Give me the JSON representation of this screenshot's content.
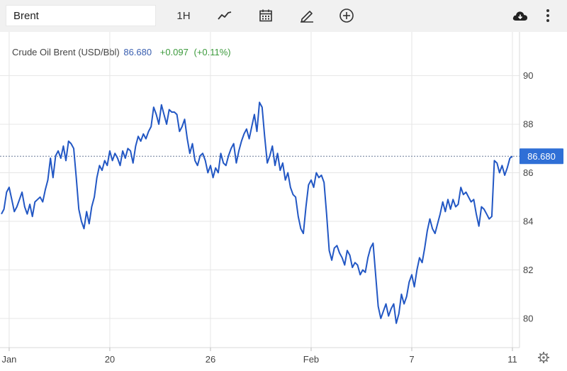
{
  "toolbar": {
    "search_value": "Brent",
    "interval_label": "1H"
  },
  "legend": {
    "instrument": "Crude Oil Brent (USD/Bbl)",
    "last": "86.680",
    "change": "+0.097",
    "change_pct": "(+0.11%)"
  },
  "colors": {
    "line": "#2257c4",
    "positive": "#3c9a3c",
    "price_tag": "#2f6fd6",
    "grid": "#e6e6e6"
  },
  "chart_data": {
    "type": "line",
    "title": "Crude Oil Brent (USD/Bbl)",
    "xlabel": "",
    "ylabel": "",
    "ylim": [
      78.8,
      91.8
    ],
    "y_ticks": [
      80,
      82,
      84,
      86,
      88,
      90
    ],
    "x_ticks": [
      {
        "label": "Jan",
        "i": 3
      },
      {
        "label": "20",
        "i": 42
      },
      {
        "label": "26",
        "i": 81
      },
      {
        "label": "Feb",
        "i": 120
      },
      {
        "label": "7",
        "i": 159
      },
      {
        "label": "11",
        "i": 198
      }
    ],
    "last_price": 86.68,
    "last_price_label": "86.680",
    "series": [
      {
        "values": [
          84.3,
          84.5,
          85.2,
          85.4,
          84.9,
          84.4,
          84.6,
          84.9,
          85.2,
          84.6,
          84.3,
          84.7,
          84.2,
          84.8,
          84.9,
          85.0,
          84.8,
          85.3,
          85.7,
          86.6,
          85.8,
          86.7,
          86.9,
          86.6,
          87.1,
          86.5,
          87.3,
          87.2,
          87.0,
          85.8,
          84.5,
          84.0,
          83.7,
          84.4,
          83.9,
          84.6,
          85.0,
          85.8,
          86.3,
          86.1,
          86.5,
          86.3,
          86.9,
          86.5,
          86.8,
          86.6,
          86.3,
          86.9,
          86.6,
          87.0,
          86.9,
          86.4,
          87.1,
          87.5,
          87.3,
          87.6,
          87.4,
          87.7,
          87.9,
          88.7,
          88.4,
          88.0,
          88.8,
          88.4,
          88.0,
          88.6,
          88.5,
          88.5,
          88.4,
          87.7,
          87.9,
          88.2,
          87.4,
          86.8,
          87.2,
          86.5,
          86.3,
          86.7,
          86.8,
          86.5,
          86.0,
          86.3,
          85.8,
          86.2,
          86.0,
          86.8,
          86.4,
          86.3,
          86.7,
          87.0,
          87.2,
          86.4,
          86.9,
          87.3,
          87.6,
          87.8,
          87.4,
          87.9,
          88.4,
          87.7,
          88.9,
          88.7,
          87.5,
          86.4,
          86.7,
          87.1,
          86.3,
          86.8,
          86.1,
          86.4,
          85.7,
          86.0,
          85.4,
          85.1,
          85.0,
          84.2,
          83.7,
          83.5,
          84.6,
          85.5,
          85.7,
          85.4,
          86.0,
          85.8,
          85.9,
          85.6,
          84.3,
          82.8,
          82.4,
          82.9,
          83.0,
          82.7,
          82.5,
          82.2,
          82.8,
          82.6,
          82.1,
          82.3,
          82.2,
          81.8,
          82.0,
          81.9,
          82.5,
          82.9,
          83.1,
          81.8,
          80.5,
          80.0,
          80.3,
          80.6,
          80.1,
          80.4,
          80.6,
          79.8,
          80.2,
          81.0,
          80.6,
          80.9,
          81.5,
          81.8,
          81.3,
          82.0,
          82.5,
          82.3,
          82.9,
          83.6,
          84.1,
          83.7,
          83.5,
          83.9,
          84.3,
          84.8,
          84.4,
          84.9,
          84.5,
          84.9,
          84.6,
          84.7,
          85.4,
          85.1,
          85.2,
          85.0,
          84.8,
          84.9,
          84.3,
          83.8,
          84.6,
          84.5,
          84.3,
          84.1,
          84.2,
          86.5,
          86.4,
          86.0,
          86.3,
          85.9,
          86.2,
          86.6,
          86.68
        ]
      }
    ],
    "grid": true,
    "legend": "top-left"
  }
}
